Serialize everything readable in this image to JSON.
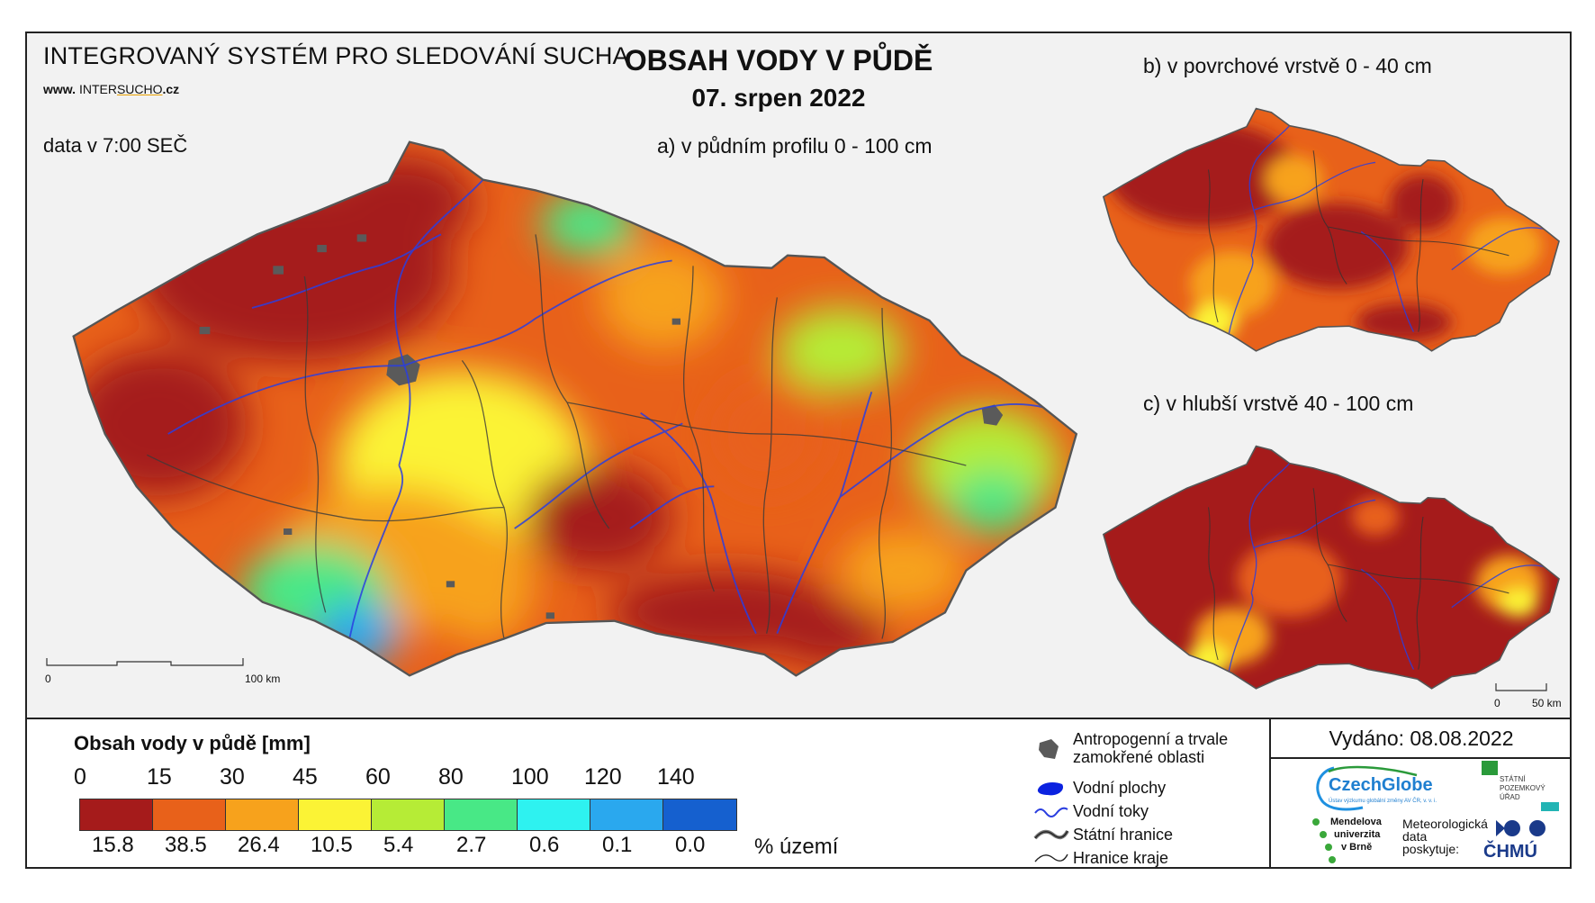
{
  "header": {
    "system_title": "INTEGROVANÝ SYSTÉM PRO SLEDOVÁNÍ SUCHA",
    "website_prefix": "www. ",
    "website_a": "INTER",
    "website_b": "SUCHO",
    "website_c": ".cz",
    "data_time": "data v 7:00 SEČ",
    "main_title": "OBSAH VODY V PŮDĚ",
    "main_date": "07. srpen 2022"
  },
  "maps": {
    "a_label": "a) v půdním profilu 0 - 100 cm",
    "b_label": "b) v povrchové vrstvě 0 - 40 cm",
    "c_label": "c) v hlubší vrstvě 40 - 100 cm",
    "scale_main": {
      "start": "0",
      "end": "100 km"
    },
    "scale_small": {
      "start": "0",
      "end": "50 km"
    }
  },
  "legend": {
    "title": "Obsah vody v půdě  [mm]",
    "thresholds": [
      "0",
      "15",
      "30",
      "45",
      "60",
      "80",
      "100",
      "120",
      "140"
    ],
    "colors": [
      "#a51b1b",
      "#e8611a",
      "#f7a21c",
      "#fbf335",
      "#b6ec36",
      "#48e886",
      "#2ef2f0",
      "#2aa8ee",
      "#1560cf"
    ],
    "percent_area": [
      "15.8",
      "38.5",
      "26.4",
      "10.5",
      "5.4",
      "2.7",
      "0.6",
      "0.1",
      "0.0"
    ],
    "percent_label": "% území",
    "symbols": {
      "anthropogenic": "Antropogenní a trvale zamokřené oblasti",
      "water_bodies": "Vodní plochy",
      "rivers": "Vodní toky",
      "state_border": "Státní hranice",
      "region_border": "Hranice kraje"
    }
  },
  "issued": "Vydáno: 08.08.2022",
  "logos": {
    "czechglobe": "CzechGlobe",
    "czechglobe_sub": "Ústav výzkumu globální změny AV ČR, v. v. i.",
    "spu_1": "STÁTNÍ",
    "spu_2": "POZEMKOVÝ",
    "spu_3": "ÚŘAD",
    "mendel_1": "Mendelova",
    "mendel_2": "univerzita",
    "mendel_3": "v Brně",
    "meteo_1": "Meteorologická",
    "meteo_2": "data",
    "meteo_3": "poskytuje:",
    "chmu": "ČHMÚ"
  }
}
